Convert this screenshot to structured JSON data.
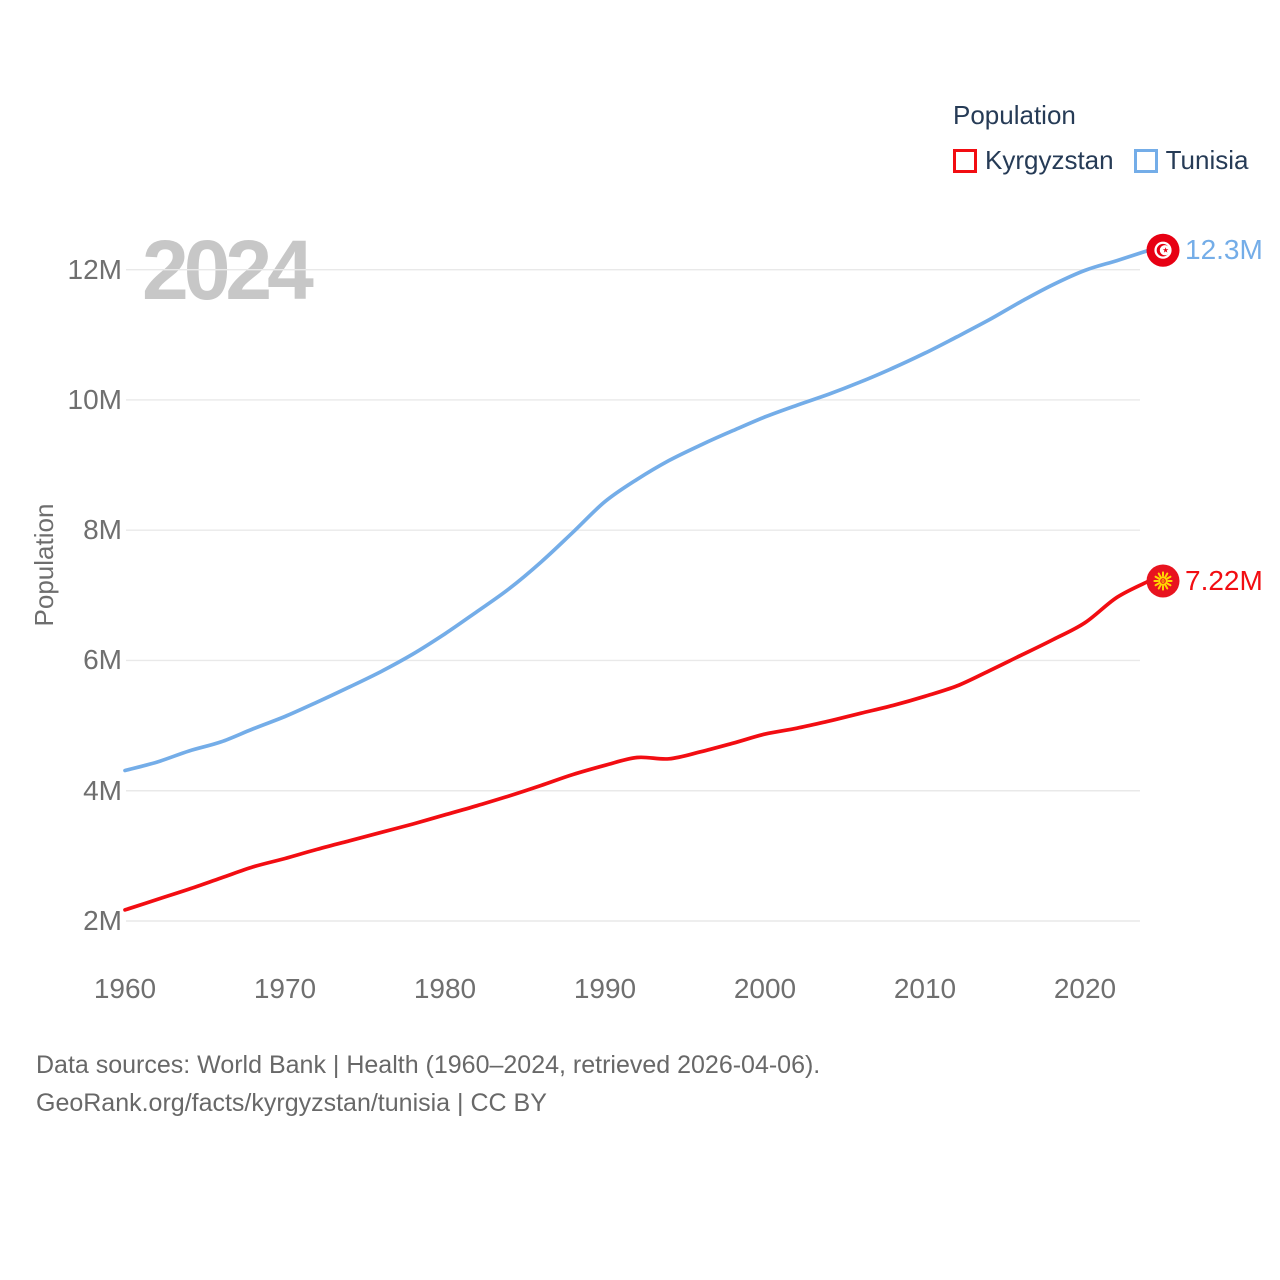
{
  "watermark": "2024",
  "legend": {
    "title": "Population",
    "items": [
      {
        "label": "Kyrgyzstan",
        "color": "#f20d12"
      },
      {
        "label": "Tunisia",
        "color": "#74ade8"
      }
    ]
  },
  "source": {
    "line1": "Data sources: World Bank | Health (1960–2024, retrieved 2026-04-06).",
    "line2": "GeoRank.org/facts/kyrgyzstan/tunisia | CC BY"
  },
  "chart_data": {
    "type": "line",
    "title": "Population",
    "xlabel": "",
    "ylabel": "Population",
    "xlim": [
      1960,
      2024
    ],
    "ylim": [
      1.5,
      12.8
    ],
    "grid": "horizontal",
    "legend_position": "top-right",
    "x": [
      1960,
      1962,
      1964,
      1966,
      1968,
      1970,
      1972,
      1974,
      1976,
      1978,
      1980,
      1982,
      1984,
      1986,
      1988,
      1990,
      1992,
      1994,
      1996,
      1998,
      2000,
      2002,
      2004,
      2006,
      2008,
      2010,
      2012,
      2014,
      2016,
      2018,
      2020,
      2022,
      2024
    ],
    "series": [
      {
        "name": "Kyrgyzstan",
        "color": "#f20d12",
        "end_label": "7.22M",
        "values": [
          2.17,
          2.33,
          2.49,
          2.66,
          2.83,
          2.96,
          3.1,
          3.23,
          3.36,
          3.49,
          3.63,
          3.77,
          3.92,
          4.08,
          4.25,
          4.39,
          4.51,
          4.49,
          4.6,
          4.73,
          4.87,
          4.96,
          5.07,
          5.19,
          5.31,
          5.45,
          5.61,
          5.84,
          6.08,
          6.32,
          6.58,
          6.97,
          7.22
        ]
      },
      {
        "name": "Tunisia",
        "color": "#74ade8",
        "end_label": "12.3M",
        "values": [
          4.31,
          4.44,
          4.61,
          4.75,
          4.95,
          5.14,
          5.36,
          5.59,
          5.83,
          6.1,
          6.41,
          6.75,
          7.1,
          7.51,
          7.97,
          8.44,
          8.78,
          9.07,
          9.31,
          9.53,
          9.74,
          9.92,
          10.09,
          10.28,
          10.49,
          10.72,
          10.97,
          11.23,
          11.51,
          11.77,
          11.99,
          12.14,
          12.3
        ]
      }
    ],
    "y_ticks": [
      {
        "value": 2,
        "label": "2M"
      },
      {
        "value": 4,
        "label": "4M"
      },
      {
        "value": 6,
        "label": "6M"
      },
      {
        "value": 8,
        "label": "8M"
      },
      {
        "value": 10,
        "label": "10M"
      },
      {
        "value": 12,
        "label": "12M"
      }
    ],
    "x_ticks": [
      {
        "value": 1960,
        "label": "1960"
      },
      {
        "value": 1970,
        "label": "1970"
      },
      {
        "value": 1980,
        "label": "1980"
      },
      {
        "value": 1990,
        "label": "1990"
      },
      {
        "value": 2000,
        "label": "2000"
      },
      {
        "value": 2010,
        "label": "2010"
      },
      {
        "value": 2020,
        "label": "2020"
      }
    ]
  }
}
